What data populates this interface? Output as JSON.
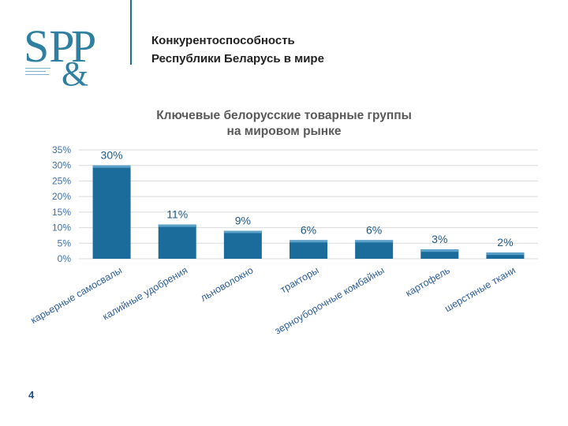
{
  "header": {
    "title": "Конкурентоспособность\nРеспублики Беларусь в мире"
  },
  "logo": {
    "text": "SP&P"
  },
  "page_number": "4",
  "colors": {
    "bar": "#1b6c9b",
    "bar_top": "#5aa0c8",
    "grid": "#d9d9d9",
    "accent": "#1e6f98"
  },
  "chart_data": {
    "type": "bar",
    "title": "Ключевые белорусские товарные группы\nна мировом рынке",
    "categories": [
      "карьерные самосвалы",
      "калийные удобрения",
      "льноволокно",
      "тракторы",
      "зерноуборочные комбайны",
      "картофель",
      "шерстяные ткани"
    ],
    "values": [
      30,
      11,
      9,
      6,
      6,
      3,
      2
    ],
    "data_labels": [
      "30%",
      "11%",
      "9%",
      "6%",
      "6%",
      "3%",
      "2%"
    ],
    "y_ticks": [
      "0%",
      "5%",
      "10%",
      "15%",
      "20%",
      "25%",
      "30%",
      "35%"
    ],
    "ylim": [
      0,
      35
    ],
    "grid": true,
    "legend": "none",
    "xlabel": "",
    "ylabel": ""
  }
}
